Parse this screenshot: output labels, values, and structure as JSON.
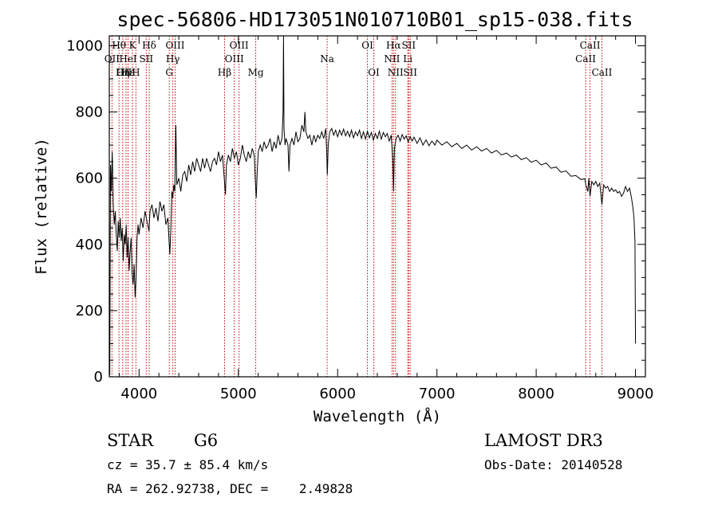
{
  "chart_data": {
    "type": "line",
    "title": "spec-56806-HD173051N010710B01_sp15-038.fits",
    "xlabel": "Wavelength (Å)",
    "ylabel": "Flux (relative)",
    "xlim": [
      3700,
      9100
    ],
    "ylim": [
      0,
      1030
    ],
    "x_ticks": [
      4000,
      5000,
      6000,
      7000,
      8000,
      9000
    ],
    "y_ticks": [
      0,
      200,
      400,
      600,
      800,
      1000
    ],
    "grid": false,
    "series": [
      {
        "color": "#000000",
        "points": [
          [
            3705,
            5
          ],
          [
            3712,
            640
          ],
          [
            3720,
            560
          ],
          [
            3730,
            680
          ],
          [
            3740,
            520
          ],
          [
            3750,
            460
          ],
          [
            3760,
            500
          ],
          [
            3770,
            430
          ],
          [
            3780,
            380
          ],
          [
            3790,
            470
          ],
          [
            3800,
            420
          ],
          [
            3810,
            480
          ],
          [
            3820,
            410
          ],
          [
            3830,
            450
          ],
          [
            3840,
            350
          ],
          [
            3850,
            430
          ],
          [
            3860,
            400
          ],
          [
            3870,
            460
          ],
          [
            3880,
            360
          ],
          [
            3890,
            420
          ],
          [
            3900,
            320
          ],
          [
            3910,
            380
          ],
          [
            3920,
            420
          ],
          [
            3930,
            310
          ],
          [
            3940,
            280
          ],
          [
            3950,
            340
          ],
          [
            3960,
            240
          ],
          [
            3970,
            300
          ],
          [
            3980,
            420
          ],
          [
            3990,
            460
          ],
          [
            4000,
            430
          ],
          [
            4020,
            480
          ],
          [
            4040,
            450
          ],
          [
            4060,
            500
          ],
          [
            4080,
            470
          ],
          [
            4100,
            440
          ],
          [
            4110,
            500
          ],
          [
            4130,
            520
          ],
          [
            4150,
            480
          ],
          [
            4170,
            510
          ],
          [
            4190,
            470
          ],
          [
            4210,
            530
          ],
          [
            4230,
            500
          ],
          [
            4250,
            520
          ],
          [
            4270,
            460
          ],
          [
            4290,
            480
          ],
          [
            4300,
            420
          ],
          [
            4310,
            370
          ],
          [
            4320,
            450
          ],
          [
            4330,
            560
          ],
          [
            4340,
            540
          ],
          [
            4350,
            580
          ],
          [
            4360,
            560
          ],
          [
            4370,
            760
          ],
          [
            4380,
            580
          ],
          [
            4400,
            600
          ],
          [
            4420,
            560
          ],
          [
            4440,
            610
          ],
          [
            4460,
            620
          ],
          [
            4480,
            590
          ],
          [
            4500,
            640
          ],
          [
            4520,
            610
          ],
          [
            4540,
            650
          ],
          [
            4560,
            620
          ],
          [
            4580,
            660
          ],
          [
            4600,
            640
          ],
          [
            4620,
            620
          ],
          [
            4640,
            660
          ],
          [
            4660,
            630
          ],
          [
            4680,
            660
          ],
          [
            4700,
            640
          ],
          [
            4720,
            620
          ],
          [
            4740,
            650
          ],
          [
            4760,
            660
          ],
          [
            4780,
            640
          ],
          [
            4800,
            680
          ],
          [
            4820,
            650
          ],
          [
            4840,
            670
          ],
          [
            4860,
            590
          ],
          [
            4870,
            550
          ],
          [
            4880,
            640
          ],
          [
            4900,
            670
          ],
          [
            4920,
            650
          ],
          [
            4940,
            690
          ],
          [
            4960,
            660
          ],
          [
            4980,
            680
          ],
          [
            5000,
            640
          ],
          [
            5020,
            660
          ],
          [
            5040,
            700
          ],
          [
            5060,
            670
          ],
          [
            5080,
            650
          ],
          [
            5100,
            680
          ],
          [
            5120,
            660
          ],
          [
            5140,
            690
          ],
          [
            5160,
            670
          ],
          [
            5170,
            600
          ],
          [
            5180,
            540
          ],
          [
            5190,
            620
          ],
          [
            5200,
            680
          ],
          [
            5220,
            700
          ],
          [
            5240,
            680
          ],
          [
            5260,
            710
          ],
          [
            5280,
            690
          ],
          [
            5300,
            700
          ],
          [
            5320,
            720
          ],
          [
            5340,
            680
          ],
          [
            5360,
            710
          ],
          [
            5380,
            690
          ],
          [
            5400,
            730
          ],
          [
            5420,
            700
          ],
          [
            5440,
            720
          ],
          [
            5450,
            800
          ],
          [
            5455,
            1030
          ],
          [
            5460,
            750
          ],
          [
            5470,
            700
          ],
          [
            5480,
            720
          ],
          [
            5500,
            700
          ],
          [
            5510,
            620
          ],
          [
            5520,
            700
          ],
          [
            5540,
            720
          ],
          [
            5560,
            700
          ],
          [
            5580,
            740
          ],
          [
            5600,
            710
          ],
          [
            5620,
            720
          ],
          [
            5640,
            760
          ],
          [
            5660,
            740
          ],
          [
            5670,
            800
          ],
          [
            5680,
            740
          ],
          [
            5700,
            720
          ],
          [
            5720,
            730
          ],
          [
            5740,
            700
          ],
          [
            5760,
            730
          ],
          [
            5780,
            710
          ],
          [
            5800,
            730
          ],
          [
            5820,
            720
          ],
          [
            5840,
            740
          ],
          [
            5860,
            720
          ],
          [
            5880,
            750
          ],
          [
            5890,
            680
          ],
          [
            5896,
            610
          ],
          [
            5905,
            700
          ],
          [
            5920,
            740
          ],
          [
            5940,
            750
          ],
          [
            5960,
            730
          ],
          [
            5980,
            745
          ],
          [
            6000,
            725
          ],
          [
            6020,
            745
          ],
          [
            6040,
            730
          ],
          [
            6060,
            748
          ],
          [
            6080,
            728
          ],
          [
            6100,
            742
          ],
          [
            6120,
            725
          ],
          [
            6140,
            745
          ],
          [
            6160,
            722
          ],
          [
            6180,
            740
          ],
          [
            6200,
            728
          ],
          [
            6220,
            745
          ],
          [
            6240,
            720
          ],
          [
            6260,
            740
          ],
          [
            6280,
            718
          ],
          [
            6300,
            742
          ],
          [
            6320,
            722
          ],
          [
            6340,
            738
          ],
          [
            6360,
            715
          ],
          [
            6380,
            735
          ],
          [
            6400,
            720
          ],
          [
            6420,
            742
          ],
          [
            6440,
            718
          ],
          [
            6460,
            738
          ],
          [
            6480,
            725
          ],
          [
            6500,
            735
          ],
          [
            6520,
            712
          ],
          [
            6540,
            730
          ],
          [
            6555,
            660
          ],
          [
            6563,
            560
          ],
          [
            6572,
            690
          ],
          [
            6590,
            720
          ],
          [
            6610,
            730
          ],
          [
            6630,
            712
          ],
          [
            6650,
            732
          ],
          [
            6670,
            718
          ],
          [
            6690,
            728
          ],
          [
            6710,
            710
          ],
          [
            6730,
            726
          ],
          [
            6750,
            712
          ],
          [
            6770,
            724
          ],
          [
            6800,
            705
          ],
          [
            6830,
            722
          ],
          [
            6860,
            700
          ],
          [
            6890,
            716
          ],
          [
            6920,
            698
          ],
          [
            6950,
            712
          ],
          [
            6980,
            700
          ],
          [
            7000,
            715
          ],
          [
            7050,
            700
          ],
          [
            7100,
            710
          ],
          [
            7150,
            695
          ],
          [
            7200,
            705
          ],
          [
            7250,
            690
          ],
          [
            7300,
            700
          ],
          [
            7350,
            685
          ],
          [
            7400,
            695
          ],
          [
            7450,
            682
          ],
          [
            7500,
            690
          ],
          [
            7550,
            676
          ],
          [
            7600,
            684
          ],
          [
            7650,
            670
          ],
          [
            7700,
            676
          ],
          [
            7750,
            664
          ],
          [
            7800,
            670
          ],
          [
            7850,
            656
          ],
          [
            7900,
            662
          ],
          [
            7950,
            648
          ],
          [
            8000,
            654
          ],
          [
            8050,
            640
          ],
          [
            8100,
            646
          ],
          [
            8150,
            630
          ],
          [
            8200,
            634
          ],
          [
            8250,
            618
          ],
          [
            8300,
            622
          ],
          [
            8350,
            606
          ],
          [
            8400,
            608
          ],
          [
            8450,
            596
          ],
          [
            8490,
            598
          ],
          [
            8500,
            580
          ],
          [
            8520,
            560
          ],
          [
            8530,
            600
          ],
          [
            8542,
            545
          ],
          [
            8560,
            590
          ],
          [
            8580,
            580
          ],
          [
            8600,
            590
          ],
          [
            8620,
            575
          ],
          [
            8640,
            585
          ],
          [
            8662,
            520
          ],
          [
            8680,
            580
          ],
          [
            8700,
            570
          ],
          [
            8720,
            575
          ],
          [
            8740,
            560
          ],
          [
            8760,
            570
          ],
          [
            8780,
            560
          ],
          [
            8800,
            565
          ],
          [
            8820,
            555
          ],
          [
            8840,
            560
          ],
          [
            8860,
            545
          ],
          [
            8880,
            555
          ],
          [
            8900,
            575
          ],
          [
            8920,
            560
          ],
          [
            8940,
            570
          ],
          [
            8960,
            540
          ],
          [
            8975,
            510
          ],
          [
            8985,
            480
          ],
          [
            8995,
            410
          ],
          [
            9000,
            100
          ]
        ]
      }
    ],
    "spectral_lines": [
      {
        "label": "Hθ",
        "wavelength": 3798,
        "row": 0
      },
      {
        "label": "OII",
        "wavelength": 3727,
        "row": 1
      },
      {
        "label": "OIII",
        "wavelength": 3869,
        "row": 2
      },
      {
        "label": "Hε",
        "wavelength": 3889,
        "row": 2
      },
      {
        "label": "HeI",
        "wavelength": 3889,
        "row": 1
      },
      {
        "label": "K",
        "wavelength": 3934,
        "row": 0
      },
      {
        "label": "Hη",
        "wavelength": 3835,
        "row": 2
      },
      {
        "label": "H",
        "wavelength": 3968,
        "row": 2
      },
      {
        "label": "SII",
        "wavelength": 4072,
        "row": 1
      },
      {
        "label": "Hδ",
        "wavelength": 4102,
        "row": 0
      },
      {
        "label": "OIII",
        "wavelength": 4363,
        "row": 0
      },
      {
        "label": "Hγ",
        "wavelength": 4340,
        "row": 1
      },
      {
        "label": "G",
        "wavelength": 4304,
        "row": 2
      },
      {
        "label": "Hβ",
        "wavelength": 4861,
        "row": 2
      },
      {
        "label": "OIII",
        "wavelength": 4959,
        "row": 1
      },
      {
        "label": "OIII",
        "wavelength": 5007,
        "row": 0
      },
      {
        "label": "Mg",
        "wavelength": 5175,
        "row": 2
      },
      {
        "label": "Na",
        "wavelength": 5894,
        "row": 1
      },
      {
        "label": "OI",
        "wavelength": 6300,
        "row": 0
      },
      {
        "label": "OI",
        "wavelength": 6364,
        "row": 2
      },
      {
        "label": "NII",
        "wavelength": 6548,
        "row": 1
      },
      {
        "label": "Hα",
        "wavelength": 6563,
        "row": 0
      },
      {
        "label": "NII",
        "wavelength": 6583,
        "row": 2
      },
      {
        "label": "SII",
        "wavelength": 6716,
        "row": 0
      },
      {
        "label": "Li",
        "wavelength": 6707,
        "row": 1
      },
      {
        "label": "SII",
        "wavelength": 6731,
        "row": 2
      },
      {
        "label": "CaII",
        "wavelength": 8498,
        "row": 1
      },
      {
        "label": "CaII",
        "wavelength": 8542,
        "row": 0
      },
      {
        "label": "CaII",
        "wavelength": 8662,
        "row": 2
      }
    ]
  },
  "info": {
    "object_class": "STAR",
    "subclass": "G6",
    "survey": "LAMOST DR3",
    "redshift_text": "cz = 35.7 ± 85.4 km/s",
    "obs_date_text": "Obs-Date: 20140528",
    "coords_text": "RA = 262.92738, DEC =    2.49828"
  },
  "colors": {
    "spectrum": "#000000",
    "line_marker": "#cc0000",
    "background": "#ffffff"
  }
}
